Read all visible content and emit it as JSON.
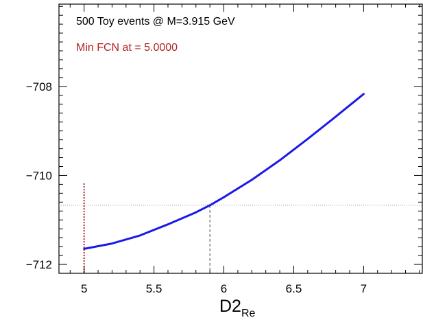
{
  "colors": {
    "curve": "#1a1ae6",
    "min_marker": "#b22222",
    "reference": "#444444",
    "frame": "#000000"
  },
  "chart_data": {
    "type": "line",
    "annotations": [
      {
        "text": "500 Toy events @ M=3.915 GeV",
        "color": "#000000"
      },
      {
        "text": "Min FCN at = 5.0000",
        "color": "#b22222"
      }
    ],
    "xlabel": "D2",
    "xlabel_subscript": "Re",
    "ylabel": "",
    "xlim": [
      4.82,
      7.42
    ],
    "ylim": [
      -712.2,
      -706.15
    ],
    "xticks": [
      5,
      5.5,
      6,
      6.5,
      7
    ],
    "xtick_labels": [
      "5",
      "5.5",
      "6",
      "6.5",
      "7"
    ],
    "yticks": [
      -712,
      -710,
      -708
    ],
    "ytick_labels": [
      "−712",
      "−710",
      "−708"
    ],
    "series": [
      {
        "x": [
          5.0,
          5.2,
          5.4,
          5.6,
          5.8,
          5.9,
          6.0,
          6.2,
          6.4,
          6.6,
          6.8,
          7.0
        ],
        "y": [
          -711.65,
          -711.53,
          -711.35,
          -711.1,
          -710.83,
          -710.67,
          -710.49,
          -710.1,
          -709.66,
          -709.18,
          -708.68,
          -708.17
        ]
      }
    ],
    "min_marker": {
      "x": 5.0,
      "y_from": -712.2,
      "y_to": -710.18
    },
    "reference_value": {
      "x": 5.9,
      "y": -710.67
    }
  }
}
